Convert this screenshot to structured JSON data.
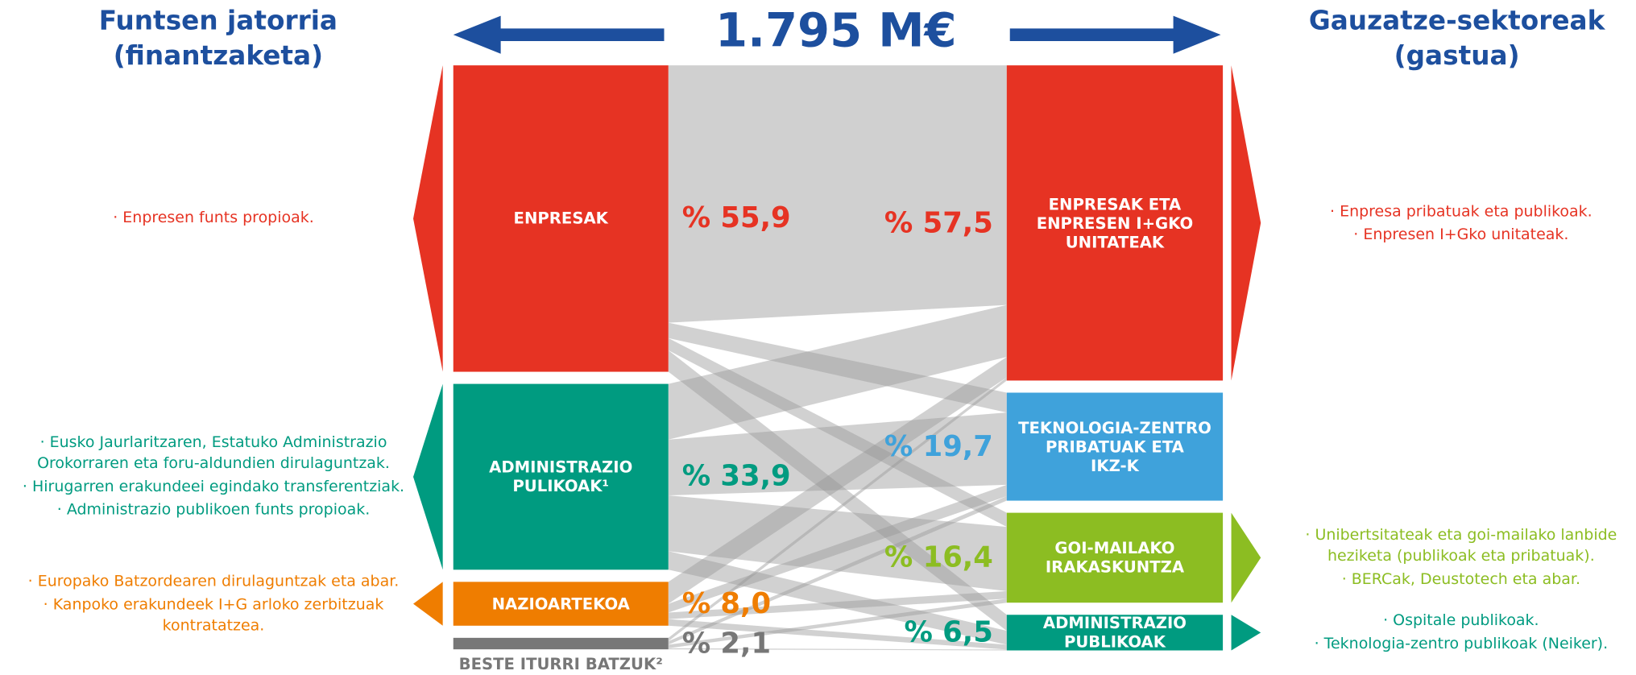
{
  "total": "1.795 M€",
  "left_title": [
    "Funtsen jatorria",
    "(finantzaketa)"
  ],
  "right_title": [
    "Gauzatze-sektoreak",
    "(gastua)"
  ],
  "sources": [
    {
      "label": [
        "ENPRESAK"
      ],
      "value": 55.9,
      "value_label": "% 55,9",
      "color": "#e63323",
      "notes": [
        "· Enpresen funts propioak."
      ]
    },
    {
      "label": [
        "ADMINISTRAZIO",
        "PULIKOAK¹"
      ],
      "value": 33.9,
      "value_label": "% 33,9",
      "color": "#009b80",
      "notes": [
        "· Eusko Jaurlaritzaren, Estatuko Administrazio Orokorraren eta foru-aldundien dirulaguntzak.",
        "· Hirugarren erakundeei egindako transferentziak.",
        "· Administrazio publikoen funts propioak."
      ]
    },
    {
      "label": [
        "NAZIOARTEKOA"
      ],
      "value": 8.0,
      "value_label": "% 8,0",
      "color": "#ef7d00",
      "notes": [
        "· Europako Batzordearen dirulaguntzak eta abar.",
        "· Kanpoko erakundeek I+G arloko zerbitzuak kontratatzea."
      ]
    },
    {
      "label": [
        "BESTE ITURRI BATZUK²"
      ],
      "value": 2.1,
      "value_label": "% 2,1",
      "color": "#777777",
      "notes": []
    }
  ],
  "sinks": [
    {
      "label": [
        "ENPRESAK ETA",
        "ENPRESEN I+GKO",
        "UNITATEAK"
      ],
      "value": 57.5,
      "value_label": "% 57,5",
      "color": "#e63323",
      "notes": [
        "· Enpresa pribatuak eta publikoak.",
        "· Enpresen I+Gko unitateak."
      ]
    },
    {
      "label": [
        "TEKNOLOGIA-ZENTRO",
        "PRIBATUAK ETA",
        "IKZ-K"
      ],
      "value": 19.7,
      "value_label": "% 19,7",
      "color": "#3fa2db",
      "notes": []
    },
    {
      "label": [
        "GOI-MAILAKO",
        "IRAKASKUNTZA"
      ],
      "value": 16.4,
      "value_label": "% 16,4",
      "color": "#8cbd22",
      "notes": [
        "· Unibertsitateak eta goi-mailako lanbide heziketa (publikoak eta pribatuak).",
        "· BERCak, Deustotech eta abar."
      ]
    },
    {
      "label": [
        "ADMINISTRAZIO",
        "PUBLIKOAK"
      ],
      "value": 6.5,
      "value_label": "% 6,5",
      "color": "#009b80",
      "notes": [
        "· Ospitale publikoak.",
        "· Teknologia-zentro publikoak (Neiker)."
      ]
    }
  ]
}
